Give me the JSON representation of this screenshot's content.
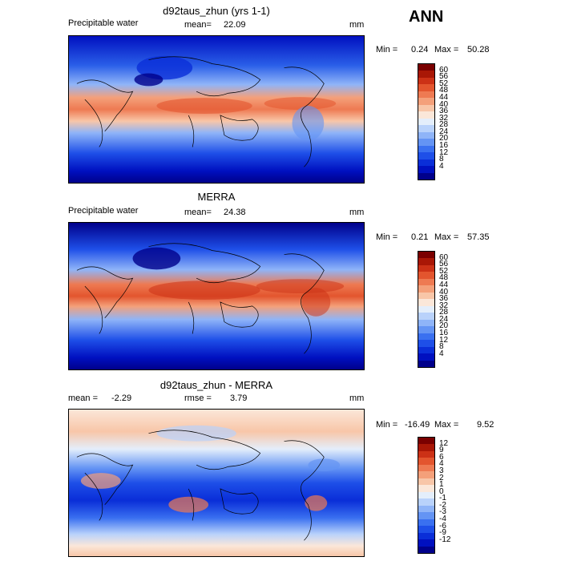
{
  "season": "ANN",
  "palette": {
    "pw": [
      "#00008B",
      "#0010C0",
      "#0A2ED8",
      "#1E4FE8",
      "#3A70F0",
      "#6494F4",
      "#8FB4F8",
      "#B9D2FB",
      "#E4EEFB",
      "#FBE7D9",
      "#F8C6A8",
      "#F4A07A",
      "#EE7A52",
      "#E3552E",
      "#CC3116",
      "#A91706",
      "#7A0000"
    ],
    "diff": [
      "#00008B",
      "#0010C0",
      "#0A2ED8",
      "#1E4FE8",
      "#3A70F0",
      "#6494F4",
      "#8FB4F8",
      "#B9D2FB",
      "#E4EEFB",
      "#FBE7D9",
      "#F8C6A8",
      "#F4A07A",
      "#EE7A52",
      "#E3552E",
      "#CC3116",
      "#A91706",
      "#7A0000"
    ]
  },
  "panels": [
    {
      "title": "d92taus_zhun (yrs 1-1)",
      "left_label": "Precipitable water",
      "mid_label": "mean=",
      "mid_value": "22.09",
      "units": "mm",
      "min_label": "Min =",
      "min_value": "0.24",
      "max_label": "Max =",
      "max_value": "50.28",
      "colorbar_ticks": [
        "60",
        "56",
        "52",
        "48",
        "44",
        "40",
        "36",
        "32",
        "28",
        "24",
        "20",
        "16",
        "12",
        "8",
        "4"
      ],
      "colormap": "pw"
    },
    {
      "title": "MERRA",
      "left_label": "Precipitable water",
      "mid_label": "mean=",
      "mid_value": "24.38",
      "units": "mm",
      "min_label": "Min =",
      "min_value": "0.21",
      "max_label": "Max =",
      "max_value": "57.35",
      "colorbar_ticks": [
        "60",
        "56",
        "52",
        "48",
        "44",
        "40",
        "36",
        "32",
        "28",
        "24",
        "20",
        "16",
        "12",
        "8",
        "4"
      ],
      "colormap": "pw"
    },
    {
      "title": "d92taus_zhun - MERRA",
      "left_label": "mean =",
      "left_value": "-2.29",
      "mid_label": "rmse =",
      "mid_value": "3.79",
      "units": "mm",
      "min_label": "Min =",
      "min_value": "-16.49",
      "max_label": "Max =",
      "max_value": "9.52",
      "colorbar_ticks": [
        "12",
        "9",
        "6",
        "4",
        "3",
        "2",
        "1",
        "0",
        "-1",
        "-2",
        "-3",
        "-4",
        "-6",
        "-9",
        "-12"
      ],
      "colormap": "diff"
    }
  ]
}
